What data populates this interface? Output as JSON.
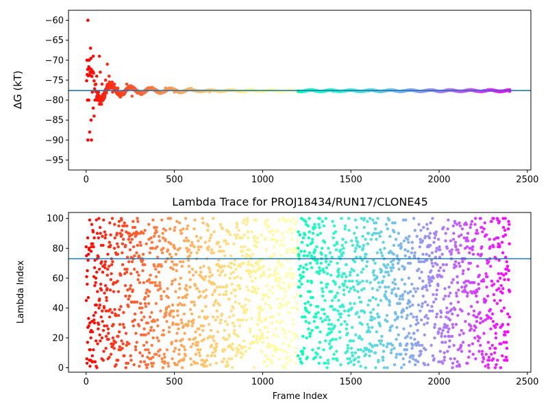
{
  "chart_data": [
    {
      "type": "scatter",
      "title": "",
      "xlabel": "",
      "ylabel": "ΔG (kT)",
      "xlim": [
        -100,
        2520
      ],
      "ylim": [
        -97.5,
        -57.5
      ],
      "xticks": [
        0,
        500,
        1000,
        1500,
        2000,
        2500
      ],
      "yticks": [
        -95,
        -90,
        -85,
        -80,
        -75,
        -70,
        -65,
        -60
      ],
      "x_range": [
        0,
        2400
      ],
      "colormap": "rainbow",
      "reference_line": -77.6,
      "series": [
        {
          "values": [
            {
              "x": 10,
              "y": -60
            },
            {
              "x": 5,
              "y": -70
            },
            {
              "x": 12,
              "y": -70
            },
            {
              "x": 8,
              "y": -80
            },
            {
              "x": 15,
              "y": -80
            },
            {
              "x": 10,
              "y": -90
            },
            {
              "x": 30,
              "y": -90
            },
            {
              "x": 20,
              "y": -88
            },
            {
              "x": 25,
              "y": -67
            },
            {
              "x": 40,
              "y": -69
            },
            {
              "x": 22,
              "y": -73
            },
            {
              "x": 30,
              "y": -74
            },
            {
              "x": 35,
              "y": -78
            },
            {
              "x": 40,
              "y": -82
            },
            {
              "x": 45,
              "y": -84
            },
            {
              "x": 28,
              "y": -85
            },
            {
              "x": 50,
              "y": -80
            },
            {
              "x": 55,
              "y": -76
            },
            {
              "x": 60,
              "y": -74
            },
            {
              "x": 70,
              "y": -78
            },
            {
              "x": 75,
              "y": -69
            },
            {
              "x": 80,
              "y": -73
            },
            {
              "x": 90,
              "y": -76
            },
            {
              "x": 100,
              "y": -79
            },
            {
              "x": 110,
              "y": -75
            },
            {
              "x": 120,
              "y": -71
            },
            {
              "x": 130,
              "y": -74
            },
            {
              "x": 140,
              "y": -77
            },
            {
              "x": 150,
              "y": -78
            },
            {
              "x": 160,
              "y": -76
            },
            {
              "x": 180,
              "y": -77
            },
            {
              "x": 200,
              "y": -78
            },
            {
              "x": 230,
              "y": -76
            },
            {
              "x": 260,
              "y": -79
            },
            {
              "x": 300,
              "y": -78
            },
            {
              "x": 350,
              "y": -77
            },
            {
              "x": 400,
              "y": -78
            },
            {
              "x": 450,
              "y": -77
            },
            {
              "x": 500,
              "y": -78
            },
            {
              "x": 600,
              "y": -77.5
            },
            {
              "x": 700,
              "y": -78
            },
            {
              "x": 800,
              "y": -77.5
            },
            {
              "x": 900,
              "y": -78
            },
            {
              "x": 1000,
              "y": -77.8
            },
            {
              "x": 1200,
              "y": -77.5
            },
            {
              "x": 1400,
              "y": -77.8
            },
            {
              "x": 1600,
              "y": -77.7
            },
            {
              "x": 1800,
              "y": -77.8
            },
            {
              "x": 2000,
              "y": -77.8
            },
            {
              "x": 2200,
              "y": -77.7
            },
            {
              "x": 2400,
              "y": -77.8
            }
          ]
        }
      ]
    },
    {
      "type": "scatter",
      "title": "Lambda Trace for PROJ18434/RUN17/CLONE45",
      "xlabel": "Frame Index",
      "ylabel": "Lambda Index",
      "xlim": [
        -100,
        2520
      ],
      "ylim": [
        -3,
        104
      ],
      "xticks": [
        0,
        500,
        1000,
        1500,
        2000,
        2500
      ],
      "yticks": [
        0,
        20,
        40,
        60,
        80,
        100
      ],
      "x_range": [
        0,
        2400
      ],
      "y_range": [
        0,
        100
      ],
      "points": 2400,
      "colormap": "rainbow",
      "reference_line": 73
    }
  ]
}
